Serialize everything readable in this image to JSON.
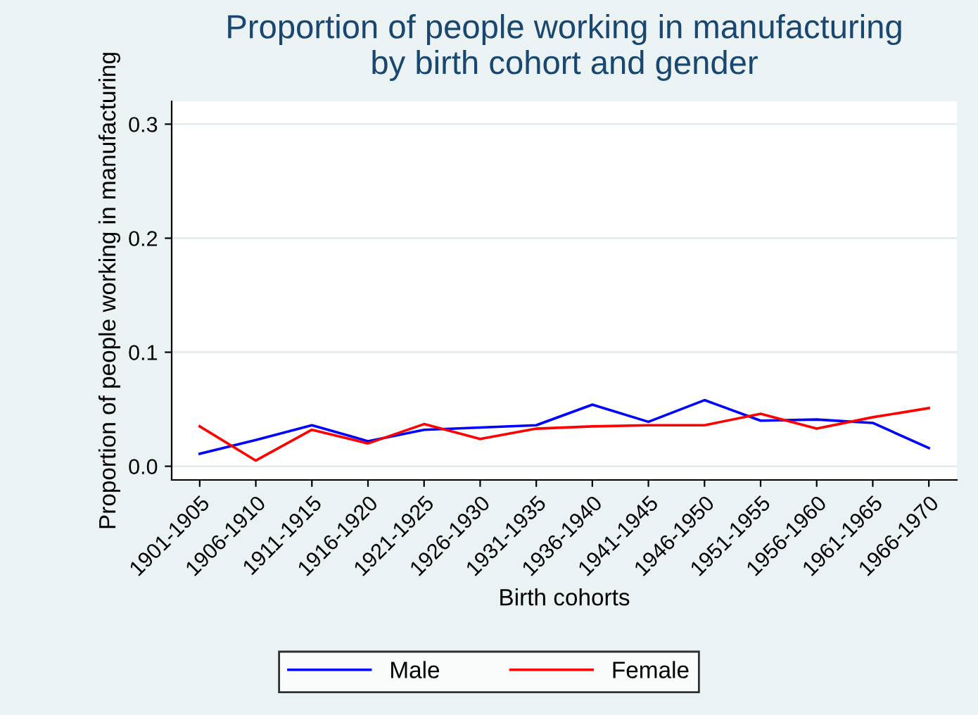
{
  "chart_data": {
    "type": "line",
    "title": "Proportion of people working in manufacturing\nby birth cohort and gender",
    "xlabel": "Birth cohorts",
    "ylabel": "Proportion of people working in manufacturing",
    "categories": [
      "1901-1905",
      "1906-1910",
      "1911-1915",
      "1916-1920",
      "1921-1925",
      "1926-1930",
      "1931-1935",
      "1936-1940",
      "1941-1945",
      "1946-1950",
      "1951-1955",
      "1956-1960",
      "1961-1965",
      "1966-1970"
    ],
    "series": [
      {
        "name": "Male",
        "color": "#0000ff",
        "values": [
          0.011,
          0.023,
          0.036,
          0.022,
          0.032,
          0.034,
          0.036,
          0.054,
          0.039,
          0.058,
          0.04,
          0.041,
          0.038,
          0.016
        ]
      },
      {
        "name": "Female",
        "color": "#ff0000",
        "values": [
          0.035,
          0.005,
          0.032,
          0.02,
          0.037,
          0.024,
          0.033,
          0.035,
          0.036,
          0.036,
          0.046,
          0.033,
          0.043,
          0.051
        ]
      }
    ],
    "ylim": [
      -0.012,
      0.32
    ],
    "yticks": [
      {
        "value": 0,
        "label": "0.0"
      },
      0.1,
      0.2,
      0.3
    ],
    "grid": "y",
    "legend": "bottom",
    "marker": "none",
    "line_style": "solid"
  }
}
